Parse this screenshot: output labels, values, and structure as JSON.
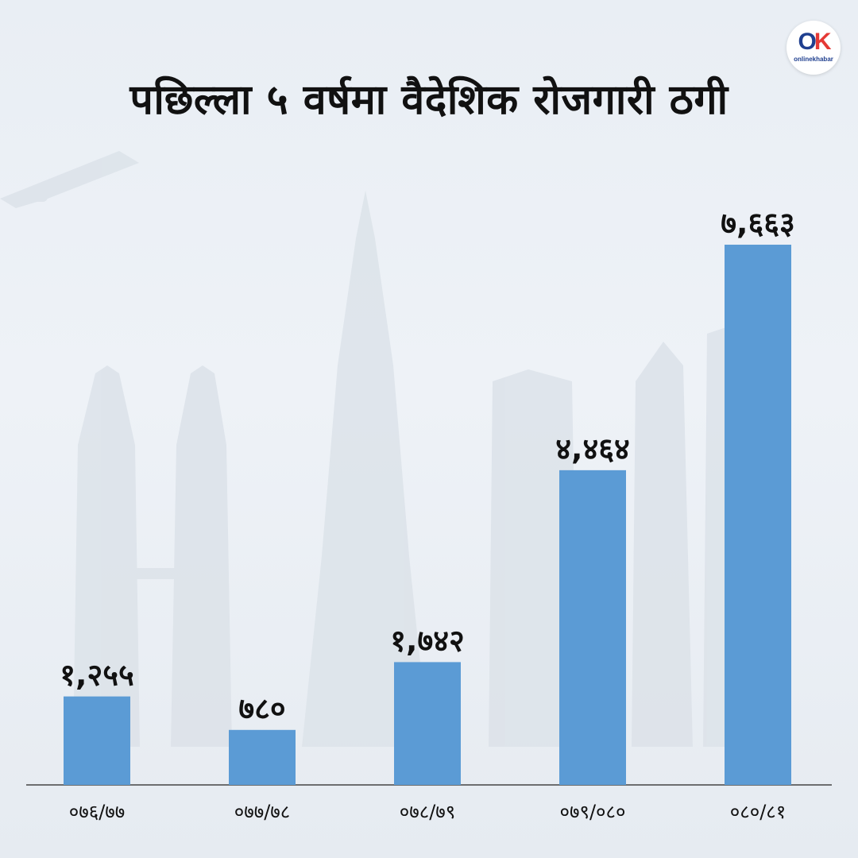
{
  "header": {
    "title": "पछिल्ला ५ वर्षमा वैदेशिक रोजगारी ठगी",
    "logo": {
      "mark_left": "O",
      "mark_right": "K",
      "wordmark": "onlinekhabar"
    }
  },
  "chart_data": {
    "type": "bar",
    "title": "पछिल्ला ५ वर्षमा वैदेशिक रोजगारी ठगी",
    "categories": [
      "०७६/७७",
      "०७७/७८",
      "०७८/७९",
      "०७९/०८०",
      "०८०/८१"
    ],
    "values": [
      1255,
      780,
      1742,
      4464,
      7663
    ],
    "value_labels": [
      "१,२५५",
      "७८०",
      "१,७४२",
      "४,४६४",
      "७,६६३"
    ],
    "xlabel": "",
    "ylabel": "",
    "ylim": [
      0,
      7663
    ],
    "grid": false,
    "legend": "none",
    "bar_color": "#5b9bd5"
  }
}
